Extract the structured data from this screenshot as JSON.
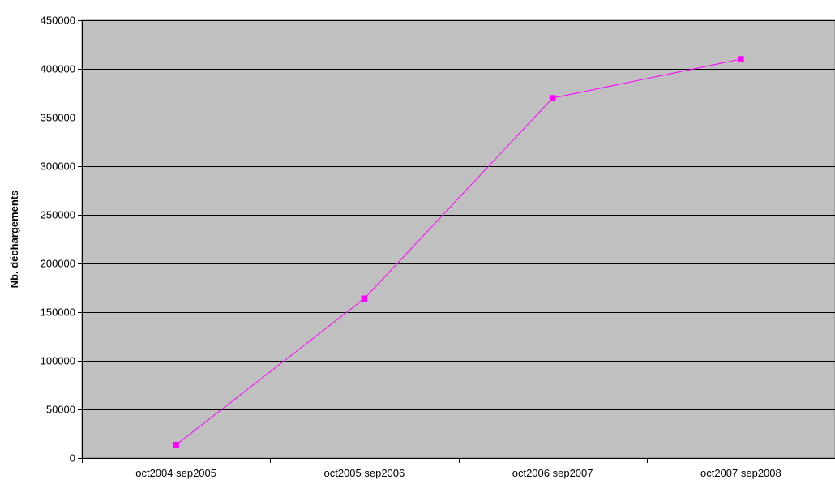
{
  "chart_data": {
    "type": "line",
    "title": "",
    "xlabel": "",
    "ylabel": "Nb. déchargements",
    "categories": [
      "oct2004 sep2005",
      "oct2005 sep2006",
      "oct2006 sep2007",
      "oct2007 sep2008"
    ],
    "series": [
      {
        "values": [
          13500,
          164000,
          370000,
          410000
        ],
        "color": "#ff00ff"
      }
    ],
    "ylim": [
      0,
      450000
    ],
    "yticks": [
      0,
      50000,
      100000,
      150000,
      200000,
      250000,
      300000,
      350000,
      400000,
      450000
    ],
    "ytick_labels": [
      "0",
      "50000",
      "100000",
      "150000",
      "200000",
      "250000",
      "300000",
      "350000",
      "400000",
      "450000"
    ],
    "grid": true,
    "legend": "none",
    "plot_background": "#c0c0c0",
    "gridline_color": "#000000"
  }
}
